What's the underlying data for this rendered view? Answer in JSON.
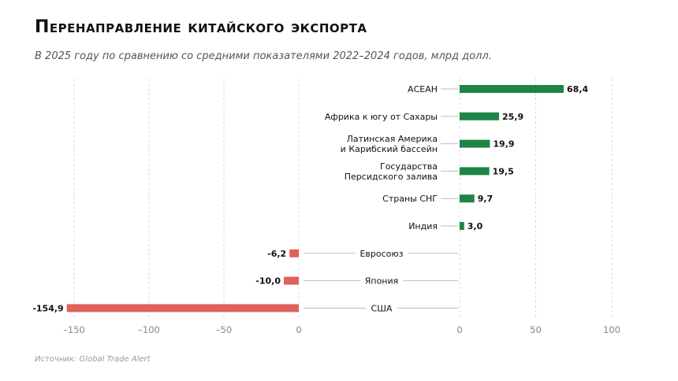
{
  "title": "Перенаправление китайского экспорта",
  "subtitle": "В 2025 году по сравнению со средними показателями 2022–2024 годов, млрд долл.",
  "source": "Источник: Global Trade Alert",
  "colors": {
    "positive": "#1f8447",
    "negative": "#e0605a",
    "grid": "#d8d8d8",
    "leader": "#bdbdbd"
  },
  "chart_data": {
    "type": "bar",
    "orientation": "horizontal",
    "categories": [
      "АСЕАН",
      "Африка к югу от Сахары",
      "Латинская Америка\nи Карибский бассейн",
      "Государства\nПерсидского залива",
      "Страны СНГ",
      "Индия",
      "Евросоюз",
      "Япония",
      "США"
    ],
    "values": [
      68.4,
      25.9,
      19.9,
      19.5,
      9.7,
      3.0,
      -6.2,
      -10.0,
      -154.9
    ],
    "value_labels": [
      "68,4",
      "25,9",
      "19,9",
      "19,5",
      "9,7",
      "3,0",
      "-6,2",
      "-10,0",
      "-154,9"
    ],
    "negative_axis": {
      "range": [
        -160,
        0
      ],
      "ticks": [
        -150,
        -100,
        -50,
        0
      ],
      "tick_labels": [
        "–150",
        "–100",
        "–50",
        "0"
      ]
    },
    "positive_axis": {
      "range": [
        0,
        100
      ],
      "ticks": [
        0,
        50,
        100
      ],
      "tick_labels": [
        "0",
        "50",
        "100"
      ]
    },
    "grid": true,
    "legend": "none"
  }
}
